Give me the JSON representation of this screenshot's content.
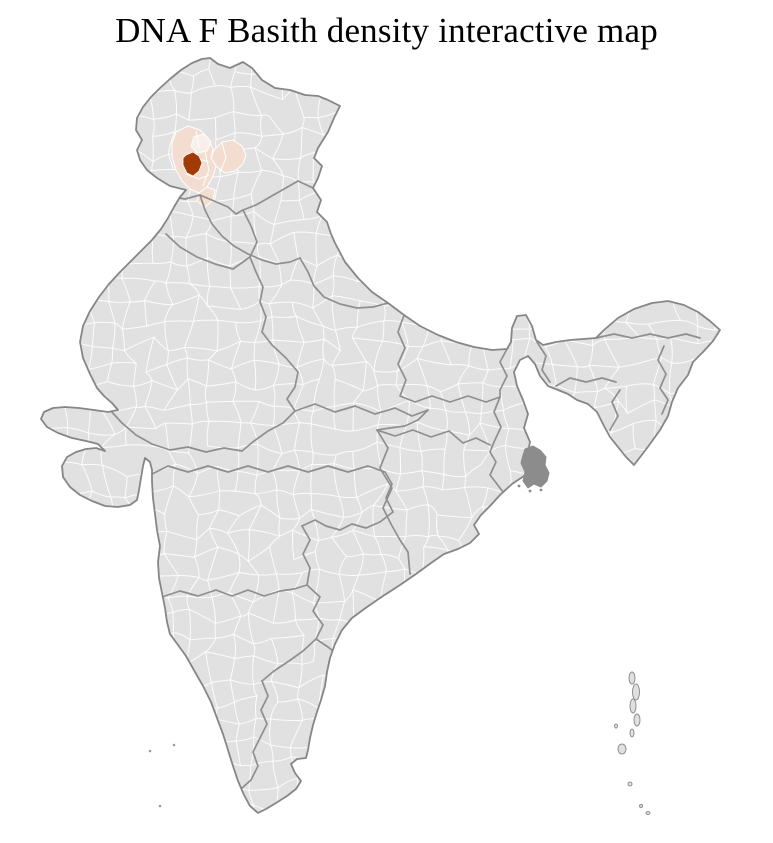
{
  "title": "DNA F Basith density interactive map",
  "map": {
    "type": "choropleth",
    "subject": "India district map",
    "highlighted_region": "northwest (Jammu & Kashmir)",
    "colors": {
      "background": "#ffffff",
      "land": "#e1e1e1",
      "district_border": "#ffffff",
      "state_border": "#8f8f8f",
      "country_border": "#868686",
      "selected_district": "#a23a05",
      "neighbor_district": "#f3ddd0",
      "neighbor_district_light": "#f8efe9",
      "dense_delta": "#8c8c8c",
      "island": "#e0e0e0",
      "islet_dot": "#9c9c9c"
    }
  }
}
